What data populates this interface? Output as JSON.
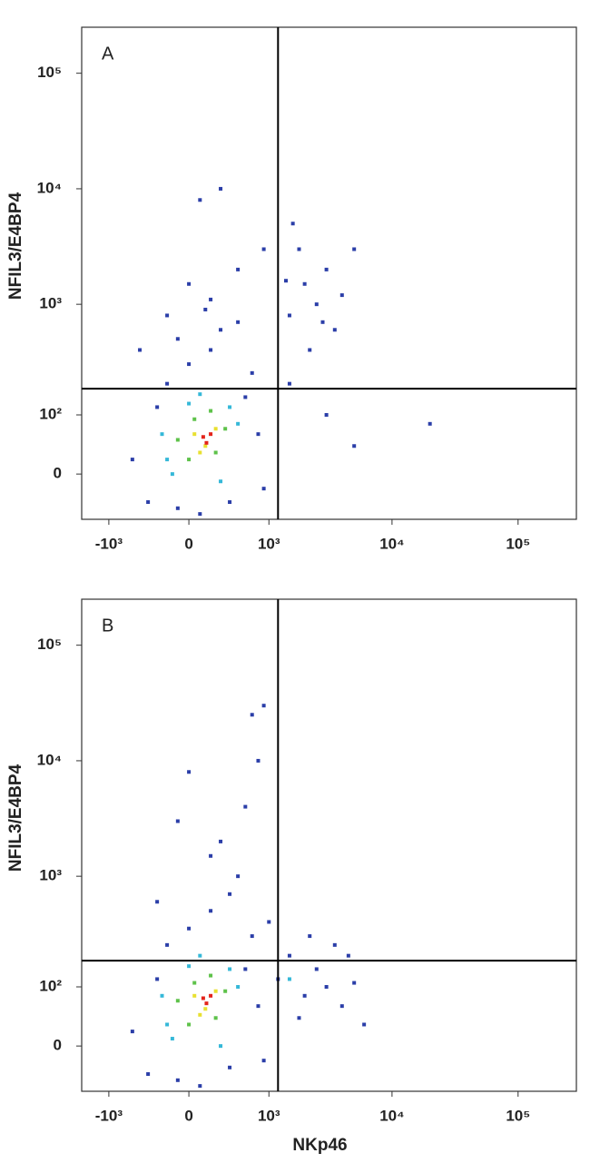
{
  "chart_data": [
    {
      "type": "scatter",
      "panel_label": "A",
      "ylabel": "NFIL3/E4BP4",
      "xlim": [
        -1700,
        290000
      ],
      "ylim": [
        -70,
        250000
      ],
      "xticks": [
        {
          "value": -1000,
          "label": "-10³"
        },
        0,
        {
          "value": 1000,
          "label": "10³"
        },
        {
          "value": 10000,
          "label": "10⁴"
        },
        {
          "value": 100000,
          "label": "10⁵"
        }
      ],
      "yticks": [
        0,
        {
          "value": 100,
          "label": "10²"
        },
        {
          "value": 1000,
          "label": "10³"
        },
        {
          "value": 10000,
          "label": "10⁴"
        },
        {
          "value": 100000,
          "label": "10⁵"
        }
      ],
      "quadrant": {
        "x": 1200,
        "y": 180
      },
      "series": [
        {
          "color": "#2b3ea8",
          "x": [
            -600,
            -400,
            -300,
            -200,
            -100,
            0,
            100,
            200,
            400,
            600,
            800,
            900,
            700,
            300,
            -100,
            150,
            0,
            500,
            200,
            -200,
            1500,
            2000,
            2500,
            3000,
            1800,
            4000,
            3500,
            2200,
            5000,
            1400,
            2800,
            1600,
            900,
            300,
            100,
            20000,
            5000,
            1500,
            3000,
            -500,
            500
          ],
          "values": [
            20,
            -40,
            120,
            200,
            -50,
            300,
            -60,
            400,
            -40,
            150,
            60,
            -20,
            250,
            600,
            500,
            900,
            1500,
            2000,
            1100,
            800,
            800,
            1500,
            1000,
            2000,
            3000,
            1200,
            600,
            400,
            3000,
            1600,
            700,
            5000,
            3000,
            10000,
            8000,
            80,
            40,
            200,
            100,
            400,
            700
          ]
        },
        {
          "color": "#35b8d8",
          "x": [
            -250,
            -150,
            0,
            300,
            500,
            400,
            -200,
            100
          ],
          "values": [
            60,
            0,
            130,
            -10,
            80,
            120,
            20,
            160
          ]
        },
        {
          "color": "#5ec24a",
          "x": [
            -100,
            50,
            250,
            350,
            0,
            200
          ],
          "values": [
            50,
            90,
            30,
            70,
            20,
            110
          ]
        },
        {
          "color": "#e8e030",
          "x": [
            50,
            150,
            250,
            100
          ],
          "values": [
            60,
            40,
            70,
            30
          ]
        },
        {
          "color": "#e3241b",
          "x": [
            130,
            200,
            160
          ],
          "values": [
            55,
            60,
            45
          ]
        }
      ]
    },
    {
      "type": "scatter",
      "panel_label": "B",
      "ylabel": "NFIL3/E4BP4",
      "xlabel": "NKp46",
      "xlim": [
        -1700,
        290000
      ],
      "ylim": [
        -70,
        250000
      ],
      "xticks": [
        {
          "value": -1000,
          "label": "-10³"
        },
        0,
        {
          "value": 1000,
          "label": "10³"
        },
        {
          "value": 10000,
          "label": "10⁴"
        },
        {
          "value": 100000,
          "label": "10⁵"
        }
      ],
      "yticks": [
        0,
        {
          "value": 100,
          "label": "10²"
        },
        {
          "value": 1000,
          "label": "10³"
        },
        {
          "value": 10000,
          "label": "10⁴"
        },
        {
          "value": 100000,
          "label": "10⁵"
        }
      ],
      "quadrant": {
        "x": 1200,
        "y": 180
      },
      "series": [
        {
          "color": "#2b3ea8",
          "x": [
            -600,
            -400,
            -300,
            -200,
            -100,
            0,
            100,
            200,
            400,
            600,
            800,
            900,
            700,
            1200,
            1500,
            2000,
            2500,
            3000,
            4000,
            5000,
            3500,
            1800,
            6000,
            2200,
            500,
            300,
            600,
            800,
            700,
            900,
            -100,
            0,
            200,
            -300,
            400,
            1000,
            4500
          ],
          "values": [
            20,
            -40,
            120,
            250,
            -50,
            350,
            -60,
            500,
            -30,
            150,
            60,
            -20,
            300,
            120,
            200,
            80,
            150,
            100,
            60,
            110,
            250,
            40,
            30,
            300,
            1000,
            2000,
            4000,
            10000,
            25000,
            30000,
            3000,
            8000,
            1500,
            600,
            700,
            400,
            200
          ]
        },
        {
          "color": "#35b8d8",
          "x": [
            -250,
            -150,
            0,
            300,
            500,
            400,
            -200,
            100,
            1500
          ],
          "values": [
            80,
            10,
            160,
            0,
            100,
            150,
            30,
            200,
            120
          ]
        },
        {
          "color": "#5ec24a",
          "x": [
            -100,
            50,
            250,
            350,
            0,
            200
          ],
          "values": [
            70,
            110,
            40,
            90,
            30,
            130
          ]
        },
        {
          "color": "#e8e030",
          "x": [
            50,
            150,
            250,
            100
          ],
          "values": [
            80,
            55,
            90,
            45
          ]
        },
        {
          "color": "#e3241b",
          "x": [
            130,
            200,
            160
          ],
          "values": [
            75,
            80,
            65
          ]
        }
      ]
    }
  ]
}
